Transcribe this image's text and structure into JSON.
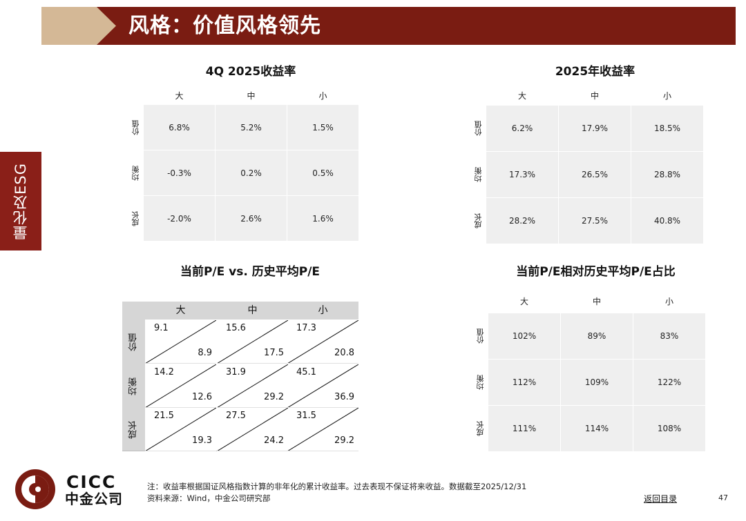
{
  "header": {
    "title": "风格：价值风格领先",
    "accent_color": "#7a1c12",
    "chevron_color": "#d4b896"
  },
  "side_tab": {
    "label": "量化及ESG"
  },
  "panels": {
    "q4_returns": {
      "title": "4Q 2025收益率",
      "columns": [
        "大",
        "中",
        "小"
      ],
      "rows": [
        {
          "label": "价值",
          "values": [
            "6.8%",
            "5.2%",
            "1.5%"
          ]
        },
        {
          "label": "均衡",
          "values": [
            "-0.3%",
            "0.2%",
            "0.5%"
          ]
        },
        {
          "label": "成长",
          "values": [
            "-2.0%",
            "2.6%",
            "1.6%"
          ]
        }
      ]
    },
    "y2025_returns": {
      "title": "2025年收益率",
      "columns": [
        "大",
        "中",
        "小"
      ],
      "rows": [
        {
          "label": "价值",
          "values": [
            "6.2%",
            "17.9%",
            "18.5%"
          ]
        },
        {
          "label": "均衡",
          "values": [
            "17.3%",
            "26.5%",
            "28.8%"
          ]
        },
        {
          "label": "成长",
          "values": [
            "28.2%",
            "27.5%",
            "40.8%"
          ]
        }
      ]
    },
    "pe_compare": {
      "title": "当前P/E vs. 历史平均P/E",
      "columns": [
        "大",
        "中",
        "小"
      ],
      "rows": [
        {
          "label": "价值",
          "cells": [
            {
              "current": "9.1",
              "history": "8.9"
            },
            {
              "current": "15.6",
              "history": "17.5"
            },
            {
              "current": "17.3",
              "history": "20.8"
            }
          ]
        },
        {
          "label": "均衡",
          "cells": [
            {
              "current": "14.2",
              "history": "12.6"
            },
            {
              "current": "31.9",
              "history": "29.2"
            },
            {
              "current": "45.1",
              "history": "36.9"
            }
          ]
        },
        {
          "label": "成长",
          "cells": [
            {
              "current": "21.5",
              "history": "19.3"
            },
            {
              "current": "27.5",
              "history": "24.2"
            },
            {
              "current": "31.5",
              "history": "29.2"
            }
          ]
        }
      ]
    },
    "pe_ratio": {
      "title": "当前P/E相对历史平均P/E占比",
      "columns": [
        "大",
        "中",
        "小"
      ],
      "rows": [
        {
          "label": "价值",
          "values": [
            "102%",
            "89%",
            "83%"
          ]
        },
        {
          "label": "均衡",
          "values": [
            "112%",
            "109%",
            "122%"
          ]
        },
        {
          "label": "成长",
          "values": [
            "111%",
            "114%",
            "108%"
          ]
        }
      ]
    }
  },
  "footer": {
    "logo_en": "CICC",
    "logo_cn": "中金公司",
    "note": "注：收益率根据国证风格指数计算的非年化的累计收益率。过去表现不保证将来收益。数据截至2025/12/31",
    "source": "资料来源：Wind，中金公司研究部",
    "back_link": "返回目录",
    "page_number": "47"
  }
}
